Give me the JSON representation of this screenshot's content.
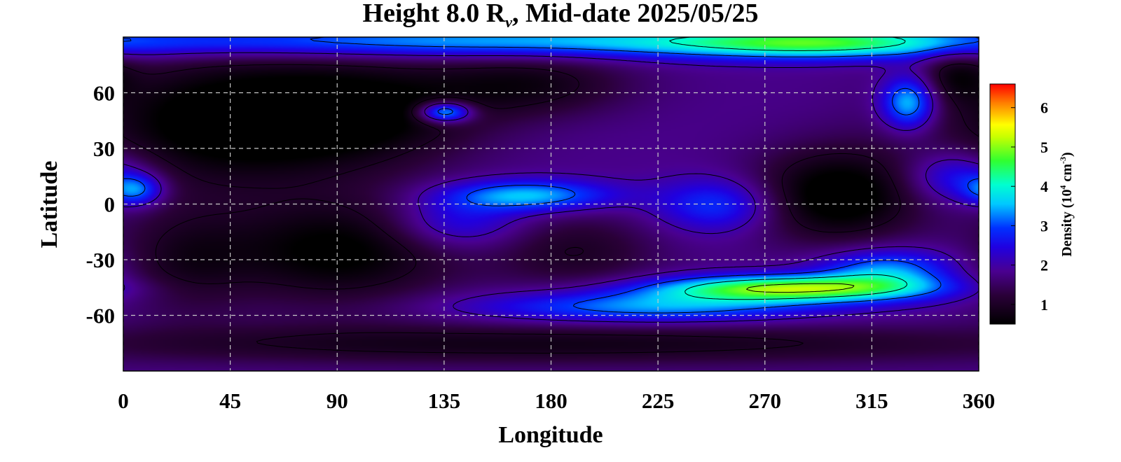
{
  "chart_data": {
    "type": "heatmap",
    "title": {
      "prefix": "Height 8.0 R",
      "subscript": "ν",
      "suffix": ", Mid-date 2025/05/25"
    },
    "xlabel": "Longitude",
    "ylabel": "Latitude",
    "xlim": [
      0,
      360
    ],
    "ylim": [
      -90,
      90
    ],
    "xticks": [
      0,
      45,
      90,
      135,
      180,
      225,
      270,
      315,
      360
    ],
    "yticks": [
      60,
      30,
      0,
      -30,
      -60
    ],
    "grid": true,
    "colorbar": {
      "label_prefix": "Density (10",
      "label_exp1": "4",
      "label_mid": " cm",
      "label_exp2": "-3",
      "label_suffix": ")",
      "range": [
        0.5,
        6.6
      ],
      "ticks": [
        1,
        2,
        3,
        4,
        5,
        6
      ],
      "colormap": [
        [
          0.0,
          "#000000"
        ],
        [
          0.12,
          "#2a0038"
        ],
        [
          0.22,
          "#4a0090"
        ],
        [
          0.32,
          "#2000e0"
        ],
        [
          0.4,
          "#0030ff"
        ],
        [
          0.5,
          "#00c8ff"
        ],
        [
          0.58,
          "#00ffd0"
        ],
        [
          0.68,
          "#30ff30"
        ],
        [
          0.78,
          "#c8ff00"
        ],
        [
          0.83,
          "#ffff00"
        ],
        [
          0.92,
          "#ff8000"
        ],
        [
          1.0,
          "#ff0000"
        ]
      ]
    },
    "contour_levels": [
      1,
      2,
      3,
      4,
      5
    ],
    "features": [
      {
        "lon": 40,
        "lat": 45,
        "sigma_lon": 40,
        "sigma_lat": 25,
        "amp": -1.5
      },
      {
        "lon": 100,
        "lat": 50,
        "sigma_lon": 35,
        "sigma_lat": 20,
        "amp": -1.3
      },
      {
        "lon": 170,
        "lat": 65,
        "sigma_lon": 30,
        "sigma_lat": 12,
        "amp": -1.0
      },
      {
        "lon": 300,
        "lat": 5,
        "sigma_lon": 25,
        "sigma_lat": 18,
        "amp": -1.6
      },
      {
        "lon": 90,
        "lat": -25,
        "sigma_lon": 35,
        "sigma_lat": 20,
        "amp": -1.4
      },
      {
        "lon": 25,
        "lat": -30,
        "sigma_lon": 20,
        "sigma_lat": 20,
        "amp": -0.8
      },
      {
        "lon": 190,
        "lat": -25,
        "sigma_lon": 25,
        "sigma_lat": 15,
        "amp": -0.8
      },
      {
        "lon": 180,
        "lat": -75,
        "sigma_lon": 160,
        "sigma_lat": 8,
        "amp": -1.0
      },
      {
        "lon": 350,
        "lat": 70,
        "sigma_lon": 10,
        "sigma_lat": 10,
        "amp": -0.8
      },
      {
        "lon": 280,
        "lat": -45,
        "sigma_lon": 40,
        "sigma_lat": 5,
        "amp": 3.2
      },
      {
        "lon": 320,
        "lat": -35,
        "sigma_lon": 20,
        "sigma_lat": 8,
        "amp": 1.6
      },
      {
        "lon": 220,
        "lat": -55,
        "sigma_lon": 50,
        "sigma_lat": 6,
        "amp": 1.6
      },
      {
        "lon": 170,
        "lat": 5,
        "sigma_lon": 25,
        "sigma_lat": 6,
        "amp": 1.8
      },
      {
        "lon": 140,
        "lat": -10,
        "sigma_lon": 20,
        "sigma_lat": 10,
        "amp": 1.0
      },
      {
        "lon": 135,
        "lat": 50,
        "sigma_lon": 8,
        "sigma_lat": 4,
        "amp": 2.5
      },
      {
        "lon": 250,
        "lat": 0,
        "sigma_lon": 18,
        "sigma_lat": 10,
        "amp": 1.2
      },
      {
        "lon": 330,
        "lat": 55,
        "sigma_lon": 8,
        "sigma_lat": 10,
        "amp": 2.0
      },
      {
        "lon": 350,
        "lat": 15,
        "sigma_lon": 15,
        "sigma_lat": 10,
        "amp": 1.2
      },
      {
        "lon": 5,
        "lat": 8,
        "sigma_lon": 8,
        "sigma_lat": 6,
        "amp": 1.5
      },
      {
        "lon": 180,
        "lat": 88,
        "sigma_lon": 200,
        "sigma_lat": 6,
        "amp": 1.8
      },
      {
        "lon": 290,
        "lat": 87,
        "sigma_lon": 40,
        "sigma_lat": 6,
        "amp": 1.5
      }
    ],
    "baseline": 1.8
  }
}
